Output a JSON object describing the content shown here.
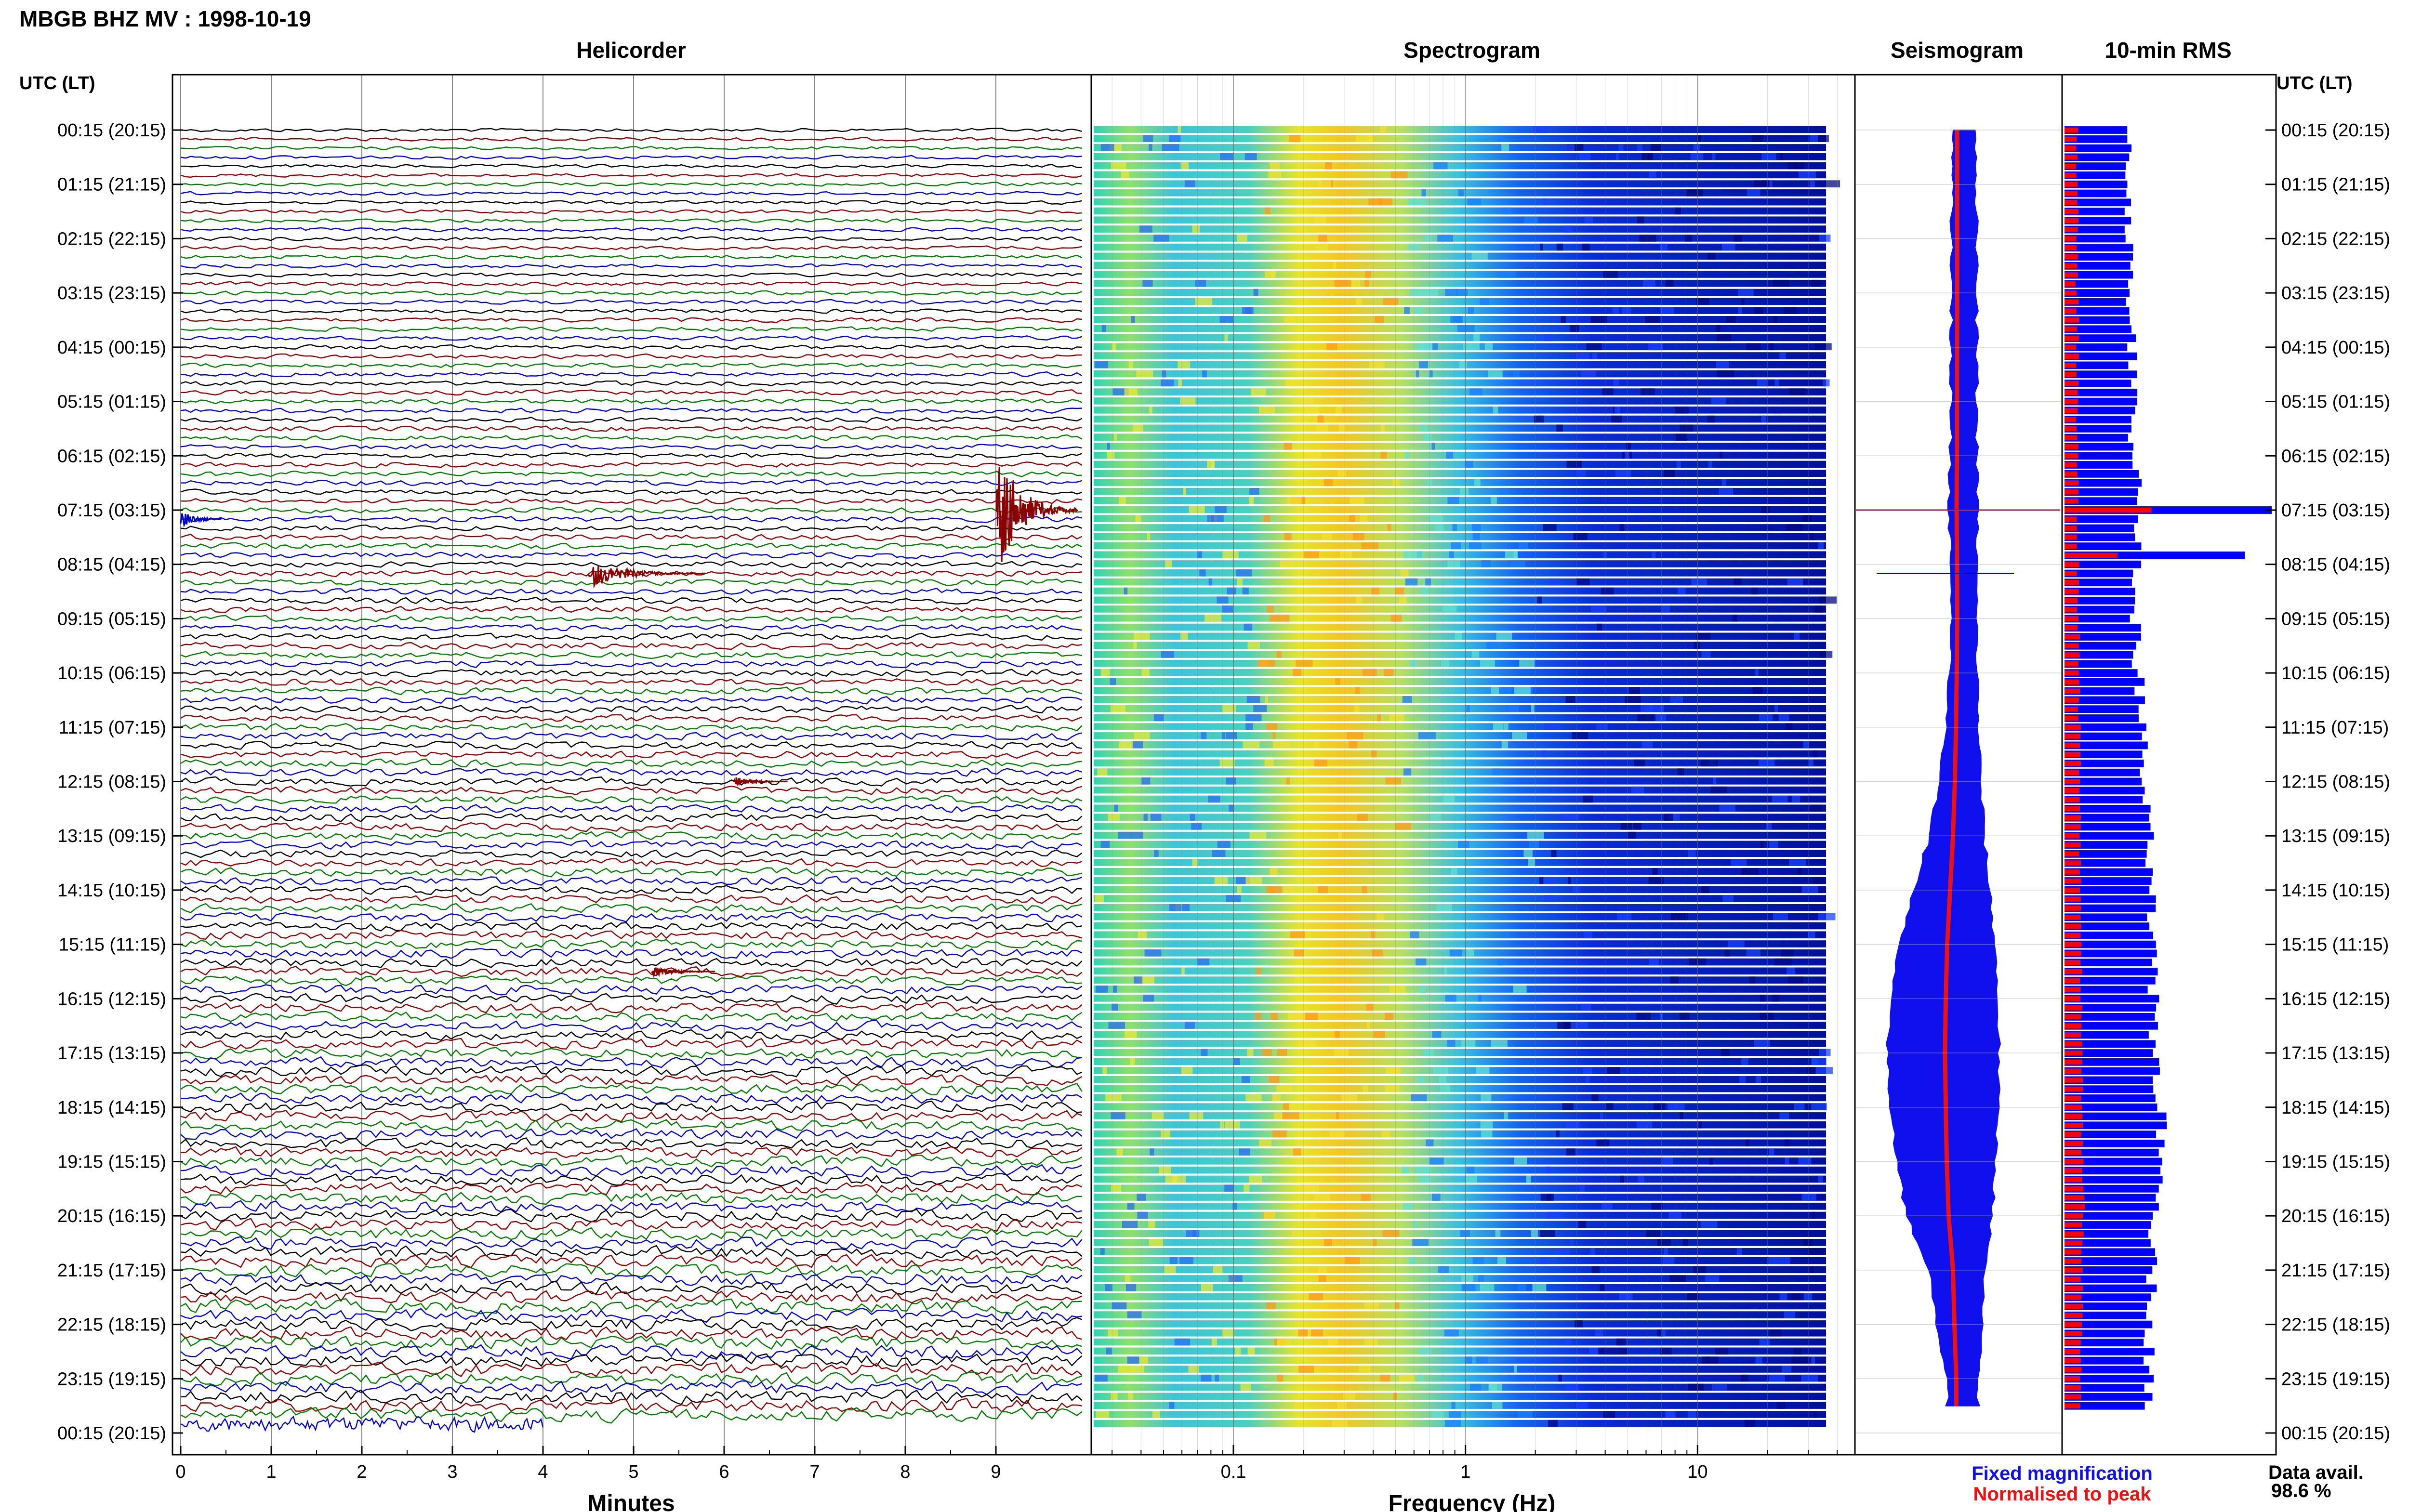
{
  "figure": {
    "title": "MBGB BHZ MV : 1998-10-19",
    "utc_header": "UTC (LT)",
    "panels": {
      "helicorder": "Helicorder",
      "spectrogram": "Spectrogram",
      "seismogram": "Seismogram",
      "rms": "10-min RMS"
    },
    "legend": {
      "fixed": "Fixed magnification",
      "normalised": "Normalised to peak",
      "fixed_color": "#1010ee",
      "normalised_color": "#ee1111"
    },
    "data_avail": {
      "label": "Data avail.",
      "value": "98.6 %"
    },
    "colors": {
      "trace_cycle": [
        "#000000",
        "#8b0000",
        "#007a00",
        "#0000cc"
      ],
      "event": "#8b0000",
      "rms_blue": "#0000ff",
      "rms_red": "#ff0000"
    }
  },
  "chart_data": [
    {
      "type": "line",
      "name": "Helicorder",
      "title": "Helicorder",
      "xlabel": "Minutes",
      "xlim": [
        0,
        10
      ],
      "x_ticks": [
        "0",
        "1",
        "2",
        "3",
        "4",
        "5",
        "6",
        "7",
        "8",
        "9"
      ],
      "row_minutes": 10,
      "rows": 144,
      "y_tick_labels": [
        "00:15 (20:15)",
        "01:15 (21:15)",
        "02:15 (22:15)",
        "03:15 (23:15)",
        "04:15 (00:15)",
        "05:15 (01:15)",
        "06:15 (02:15)",
        "07:15 (03:15)",
        "08:15 (04:15)",
        "09:15 (05:15)",
        "10:15 (06:15)",
        "11:15 (07:15)",
        "12:15 (08:15)",
        "13:15 (09:15)",
        "14:15 (10:15)",
        "15:15 (11:15)",
        "16:15 (12:15)",
        "17:15 (13:15)",
        "18:15 (14:15)",
        "19:15 (15:15)",
        "20:15 (16:15)",
        "21:15 (17:15)",
        "22:15 (18:15)",
        "23:15 (19:15)",
        "00:15 (20:15)"
      ],
      "events": [
        {
          "time_utc": "07:15",
          "minute_start": 9.0,
          "minute_end": 9.9,
          "amplitude": "large"
        },
        {
          "time_utc": "08:25",
          "minute_start": 4.5,
          "minute_end": 5.8,
          "amplitude": "medium"
        },
        {
          "time_utc": "12:15",
          "minute_start": 6.1,
          "minute_end": 6.7,
          "amplitude": "small"
        },
        {
          "time_utc": "15:45",
          "minute_start": 5.2,
          "minute_end": 5.9,
          "amplitude": "small"
        }
      ],
      "grid": true
    },
    {
      "type": "heatmap",
      "name": "Spectrogram",
      "title": "Spectrogram",
      "xlabel": "Frequency (Hz)",
      "x_scale": "log",
      "xlim": [
        0.025,
        50
      ],
      "x_ticks": [
        "0.1",
        "1",
        "10"
      ],
      "rows": 144,
      "dominant_band_hz": [
        0.2,
        0.5
      ],
      "colormap": "jet",
      "grid": true
    },
    {
      "type": "line",
      "name": "Seismogram",
      "title": "Seismogram",
      "series": [
        {
          "name": "Fixed magnification",
          "color": "#1010ee"
        },
        {
          "name": "Normalised to peak",
          "color": "#ee1111"
        }
      ],
      "hour_widths_relative": [
        0.16,
        0.16,
        0.16,
        0.16,
        0.17,
        0.17,
        0.18,
        0.2,
        0.17,
        0.16,
        0.19,
        0.24,
        0.32,
        0.45,
        0.65,
        0.85,
        0.95,
        1.0,
        0.95,
        0.88,
        0.75,
        0.45,
        0.35,
        0.22
      ]
    },
    {
      "type": "bar",
      "name": "10-min RMS",
      "title": "10-min RMS",
      "series": [
        {
          "name": "Fixed magnification",
          "color": "#0000ff"
        },
        {
          "name": "Normalised to peak",
          "color": "#ff0000"
        }
      ],
      "hour_rms_blue_relative": [
        0.5,
        0.51,
        0.5,
        0.52,
        0.53,
        0.54,
        0.57,
        1.0,
        0.56,
        0.56,
        0.6,
        0.62,
        0.64,
        0.68,
        0.69,
        0.7,
        0.72,
        0.75,
        0.78,
        0.78,
        0.72,
        0.7,
        0.68,
        0.68
      ],
      "hour_rms_red_relative": [
        0.15,
        0.16,
        0.15,
        0.16,
        0.16,
        0.16,
        0.17,
        1.0,
        0.17,
        0.18,
        0.18,
        0.19,
        0.19,
        0.2,
        0.21,
        0.21,
        0.22,
        0.22,
        0.23,
        0.24,
        0.23,
        0.22,
        0.21,
        0.21
      ]
    }
  ]
}
